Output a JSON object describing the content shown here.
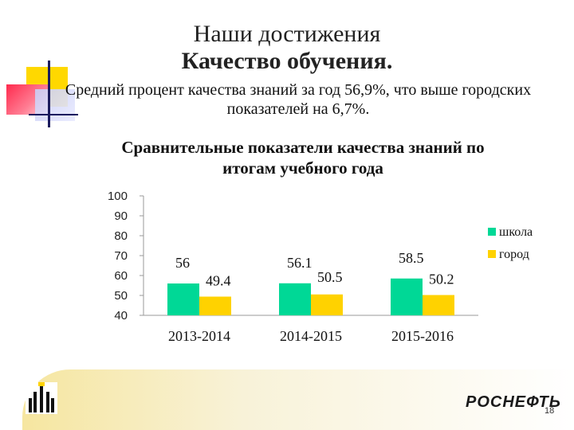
{
  "slide": {
    "title": "Наши достижения",
    "subtitle": "Качество обучения.",
    "summary_line1": "Средний процент качества знаний за год 56,9%, что выше городских",
    "summary_line2": "показателей на 6,7%.",
    "brand": "РОСНЕФТЬ",
    "page_number": "18"
  },
  "colors": {
    "school": "#00d896",
    "city": "#ffd200",
    "accent_yellow": "#ffd800",
    "accent_red": "#ff2a4d"
  },
  "icons": {
    "logo": "rosneft-logo-icon"
  },
  "chart_data": {
    "type": "bar",
    "title_line1": "Сравнительные показатели качества знаний по",
    "title_line2": "итогам учебного года",
    "categories": [
      "2013-2014",
      "2014-2015",
      "2015-2016"
    ],
    "series": [
      {
        "name": "школа",
        "values": [
          56,
          56.1,
          58.5
        ],
        "labels": [
          "56",
          "56.1",
          "58.5"
        ]
      },
      {
        "name": "город",
        "values": [
          49.4,
          50.5,
          50.2
        ],
        "labels": [
          "49.4",
          "50.5",
          "50.2"
        ]
      }
    ],
    "yticks": [
      40,
      50,
      60,
      70,
      80,
      90,
      100
    ],
    "ylim": [
      40,
      100
    ],
    "grid": false,
    "legend_position": "right"
  }
}
